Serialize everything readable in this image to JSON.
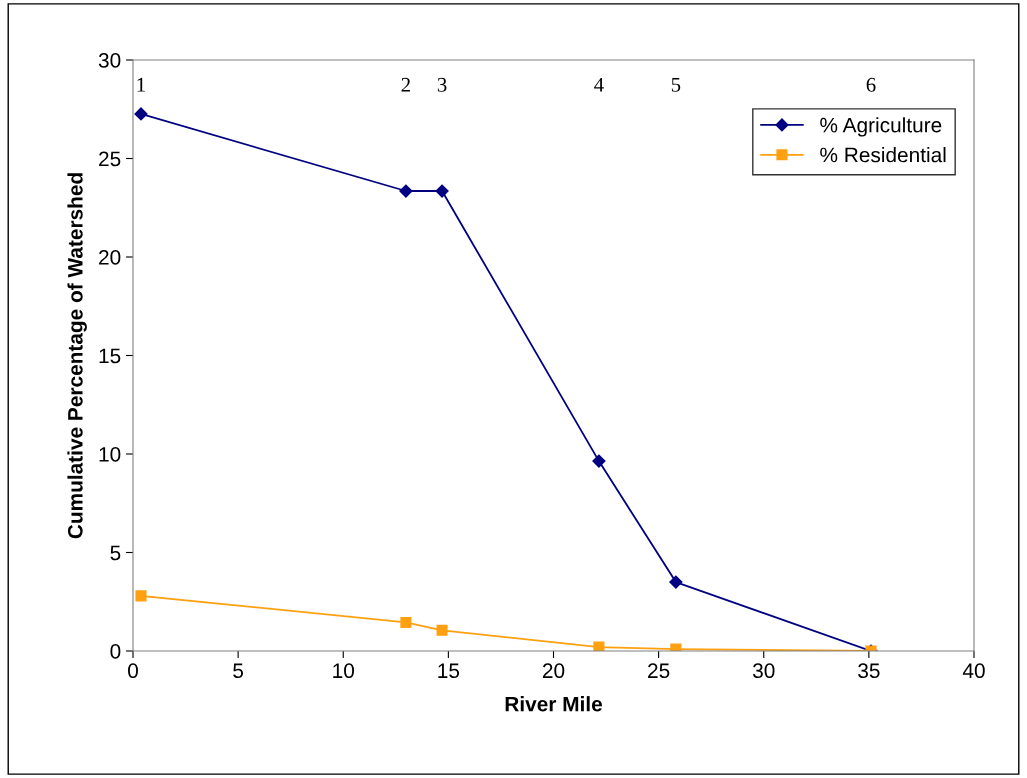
{
  "chart_data": {
    "type": "line",
    "xlabel": "River Mile",
    "ylabel": "Cumulative Percentage of Watershed",
    "xlim": [
      0,
      40
    ],
    "xticks": [
      0,
      5,
      10,
      15,
      20,
      25,
      30,
      35,
      40
    ],
    "ylim": [
      0,
      30
    ],
    "yticks": [
      0,
      5,
      10,
      15,
      20,
      25,
      30
    ],
    "series": [
      {
        "name": "% Agriculture",
        "color": "#000080",
        "marker": "diamond",
        "x": [
          0.38,
          12.98,
          14.7,
          22.16,
          25.82,
          35.1
        ],
        "values": [
          27.26,
          23.35,
          23.35,
          9.64,
          3.5,
          0
        ]
      },
      {
        "name": "% Residential",
        "color": "#ffa010",
        "marker": "square",
        "x": [
          0.38,
          12.98,
          14.7,
          22.16,
          25.82,
          35.1
        ],
        "values": [
          2.8,
          1.45,
          1.05,
          0.2,
          0.1,
          0
        ]
      }
    ],
    "annotations": [
      "1",
      "2",
      "3",
      "4",
      "5",
      "6"
    ],
    "grid": false,
    "legend": "top right",
    "line_style": "solid"
  }
}
